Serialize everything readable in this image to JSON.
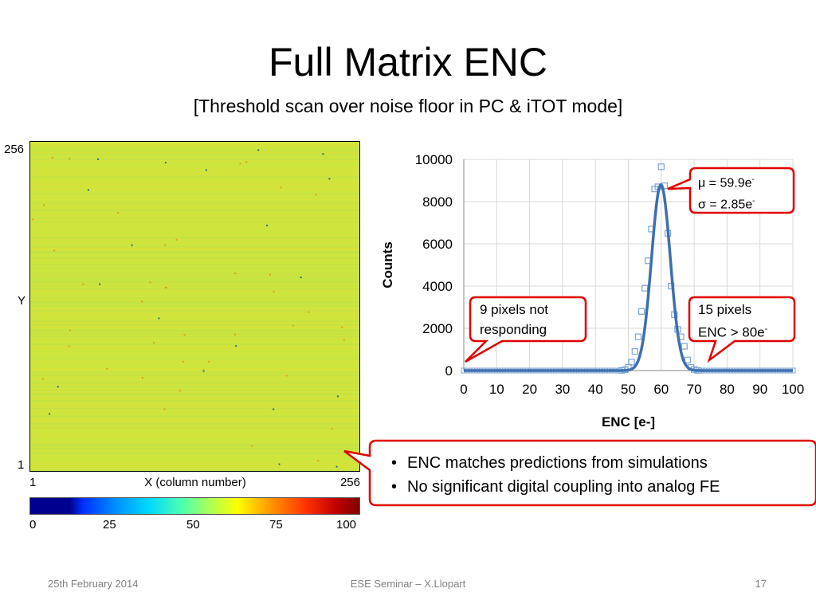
{
  "slide": {
    "title": "Full Matrix ENC",
    "subtitle": "[Threshold scan over noise floor in PC & iTOT mode]",
    "footer_left": "25th February 2014",
    "footer_center": "ESE Seminar – X.Llopart",
    "footer_right": "17"
  },
  "heatmap": {
    "y_label": "Y",
    "y_top": "256",
    "y_bottom": "1",
    "x_label": "X (column number)",
    "x_left": "1",
    "x_right": "256",
    "base_color": "#cde63e",
    "colorbar_ticks": [
      "0",
      "25",
      "50",
      "75",
      "100"
    ]
  },
  "chart_data": {
    "type": "scatter",
    "xlabel": "ENC [e-]",
    "ylabel": "Counts",
    "xlim": [
      0,
      100
    ],
    "ylim": [
      0,
      10000
    ],
    "x_ticks": [
      0,
      10,
      20,
      30,
      40,
      50,
      60,
      70,
      80,
      90,
      100
    ],
    "y_ticks": [
      0,
      2000,
      4000,
      6000,
      8000,
      10000
    ],
    "grid": true,
    "series": [
      {
        "kind": "points",
        "color": "#7ba3d4",
        "x": [
          48,
          49,
          50,
          51,
          52,
          53,
          54,
          55,
          56,
          57,
          58,
          59,
          60,
          61,
          62,
          63,
          64,
          65,
          66,
          67,
          68,
          69,
          70,
          71
        ],
        "y": [
          10,
          40,
          150,
          400,
          900,
          1600,
          2800,
          3900,
          5200,
          6700,
          8600,
          8700,
          9650,
          8750,
          6500,
          4000,
          2650,
          1950,
          1600,
          1150,
          500,
          150,
          50,
          10
        ]
      },
      {
        "kind": "gaussian_fit",
        "color": "#3d6fb0",
        "mu": 59.9,
        "sigma": 2.85,
        "peak": 8800
      }
    ],
    "annotations": [
      {
        "lines": [
          "μ = 59.9e-",
          "σ = 2.85e-"
        ]
      },
      {
        "lines": [
          "9 pixels not",
          "responding"
        ]
      },
      {
        "lines": [
          "15 pixels",
          "ENC > 80e-"
        ]
      }
    ]
  },
  "stats": {
    "mu_text": "μ = 59.9e",
    "sigma_text": "σ = 2.85e",
    "sup": "-"
  },
  "callouts": {
    "not_responding_1": "9 pixels not",
    "not_responding_2": "responding",
    "high_enc_1": "15 pixels",
    "high_enc_2": "ENC > 80e",
    "sup": "-"
  },
  "bullets": [
    "ENC matches predictions from simulations",
    "No significant digital coupling into analog FE"
  ]
}
